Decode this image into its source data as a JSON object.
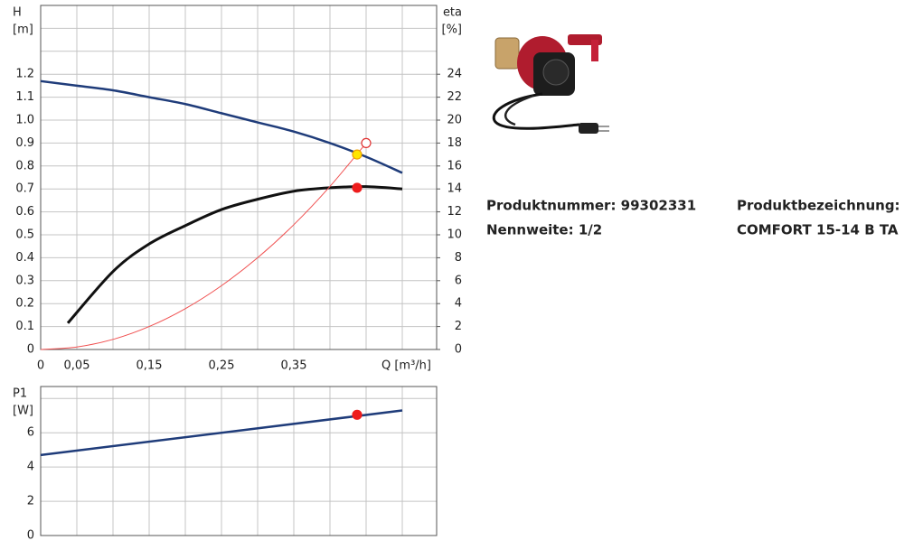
{
  "chart_data": [
    {
      "type": "line",
      "y_label": "H",
      "y_unit": "[m]",
      "y2_label": "eta",
      "y2_unit": "[%]",
      "x_label": "Q [m³/h]",
      "xlim": [
        0,
        0.5475
      ],
      "ylim": [
        0,
        1.5
      ],
      "y2lim": [
        0,
        30
      ],
      "xticks": [
        0,
        {
          "value": 0.05,
          "label": "0,05"
        },
        {
          "value": 0.15,
          "label": "0,15"
        },
        {
          "value": 0.25,
          "label": "0,25"
        },
        {
          "value": 0.35,
          "label": "0,35"
        }
      ],
      "xgrid": [
        0.1,
        0.2,
        0.3,
        0.4,
        0.45,
        0.5
      ],
      "yticks": [
        0,
        0.1,
        0.2,
        0.3,
        0.4,
        0.5,
        0.6,
        0.7,
        0.8,
        0.9,
        {
          "value": 1.0,
          "label": "1.0"
        },
        1.1,
        1.2
      ],
      "ygrid": [
        1.3,
        1.4
      ],
      "y2ticks": [
        0,
        2,
        4,
        6,
        8,
        10,
        12,
        14,
        16,
        18,
        20,
        22,
        24
      ],
      "grid": true,
      "series": [
        {
          "color": "#1f3c7a",
          "width": 2.5,
          "x": [
            0,
            0.05,
            0.1,
            0.15,
            0.2,
            0.25,
            0.3,
            0.35,
            0.4,
            0.45,
            0.5
          ],
          "values": [
            1.17,
            1.15,
            1.13,
            1.1,
            1.07,
            1.03,
            0.99,
            0.95,
            0.9,
            0.84,
            0.77
          ]
        },
        {
          "color": "#111111",
          "width": 3,
          "axis": "y2",
          "x": [
            0.0375,
            0.1,
            0.15,
            0.2,
            0.25,
            0.3,
            0.35,
            0.4,
            0.45,
            0.5
          ],
          "values": [
            2.3,
            6.8,
            9.2,
            10.8,
            12.2,
            13.1,
            13.8,
            14.1,
            14.2,
            14.0
          ]
        },
        {
          "color": "#f05050",
          "width": 1,
          "x": [
            0,
            0.05,
            0.1,
            0.15,
            0.2,
            0.25,
            0.3,
            0.35,
            0.4,
            0.45
          ],
          "values": [
            0,
            0.011,
            0.044,
            0.1,
            0.178,
            0.278,
            0.4,
            0.544,
            0.711,
            0.9
          ]
        }
      ],
      "points": [
        {
          "x": 0.45,
          "y": 0.9,
          "color": "#ffffff",
          "stroke": "#e03030"
        },
        {
          "x": 0.4375,
          "y": 0.85,
          "color": "#ffe600",
          "stroke": "#f0a000"
        },
        {
          "x": 0.4375,
          "y": 14.1,
          "axis": "y2",
          "color": "#ee1c1c",
          "stroke": "#ee1c1c"
        }
      ]
    },
    {
      "type": "line",
      "y_label": "P1",
      "y_unit": "[W]",
      "xlim": [
        0,
        0.5475
      ],
      "ylim": [
        0,
        8.7
      ],
      "xgrid": [
        0.05,
        0.1,
        0.15,
        0.2,
        0.25,
        0.3,
        0.35,
        0.4,
        0.45,
        0.5
      ],
      "yticks": [
        0,
        2,
        4,
        6
      ],
      "ygrid": [
        8
      ],
      "grid": true,
      "series": [
        {
          "color": "#1f3c7a",
          "width": 2.5,
          "x": [
            0,
            0.5
          ],
          "values": [
            4.7,
            7.3
          ]
        }
      ],
      "points": [
        {
          "x": 0.4375,
          "y": 7.05,
          "color": "#ee1c1c",
          "stroke": "#ee1c1c"
        }
      ]
    }
  ],
  "product": {
    "number": "Produktnummer: 99302331",
    "size": "Nennweite: 1/2",
    "name_label": "Produktbezeichnung:",
    "name": "COMFORT 15-14 B TA"
  }
}
